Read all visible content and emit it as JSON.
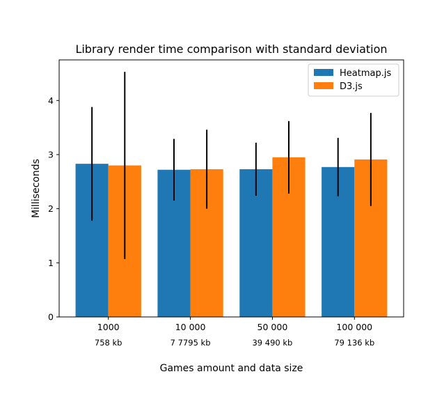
{
  "chart_data": {
    "type": "bar",
    "title": "Library render time comparison with standard deviation",
    "xlabel": "Games amount and data size",
    "ylabel": "Milliseconds",
    "ylim": [
      0,
      4.75
    ],
    "yticks": [
      0,
      1,
      2,
      3,
      4
    ],
    "categories": [
      "1000",
      "10 000",
      "50 000",
      "100 000"
    ],
    "category_sublabels": [
      "758 kb",
      "7 7795 kb",
      "39 490 kb",
      "79 136 kb"
    ],
    "series": [
      {
        "name": "Heatmap.js",
        "color": "#1f77b4",
        "values": [
          2.83,
          2.72,
          2.73,
          2.77
        ],
        "errors": [
          1.05,
          0.57,
          0.49,
          0.54
        ]
      },
      {
        "name": "D3.js",
        "color": "#ff7f0e",
        "values": [
          2.8,
          2.73,
          2.95,
          2.91
        ],
        "errors": [
          1.73,
          0.73,
          0.67,
          0.86
        ]
      }
    ],
    "legend_position": "top-right",
    "grid": false
  }
}
